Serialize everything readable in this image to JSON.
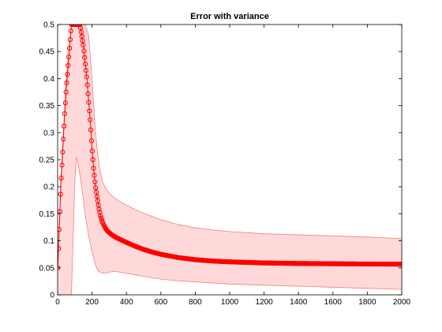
{
  "chart_data": {
    "type": "line",
    "title": "Error with variance",
    "xlabel": "",
    "ylabel": "",
    "xlim": [
      0,
      2000
    ],
    "ylim": [
      0,
      0.5
    ],
    "x_ticks": [
      0,
      200,
      400,
      600,
      800,
      1000,
      1200,
      1400,
      1600,
      1800,
      2000
    ],
    "y_ticks": [
      0,
      0.05,
      0.1,
      0.15,
      0.2,
      0.25,
      0.3,
      0.35,
      0.4,
      0.45,
      0.5
    ],
    "grid": false,
    "legend": "none",
    "colors": {
      "series": "#ff0000",
      "band_fill": "#ffd9d9",
      "band_edge": "#f08080",
      "axes": "#000000",
      "background": "#ffffff"
    },
    "series": [
      {
        "values_kind": "mean",
        "marker": "circle",
        "x": [
          1,
          10,
          20,
          30,
          40,
          50,
          60,
          70,
          80,
          90,
          100,
          110,
          120,
          130,
          140,
          150,
          160,
          170,
          180,
          190,
          200,
          210,
          220,
          230,
          240,
          250,
          260,
          270,
          280,
          290,
          300,
          320,
          340,
          360,
          380,
          400,
          450,
          500,
          550,
          600,
          700,
          800,
          900,
          1000,
          1100,
          1200,
          1300,
          1400,
          1500,
          1600,
          1700,
          1800,
          1900,
          2000
        ],
        "values": [
          0.05,
          0.13,
          0.21,
          0.27,
          0.33,
          0.38,
          0.42,
          0.46,
          0.5,
          0.5,
          0.5,
          0.5,
          0.5,
          0.5,
          0.48,
          0.46,
          0.43,
          0.4,
          0.36,
          0.32,
          0.27,
          0.23,
          0.2,
          0.18,
          0.16,
          0.145,
          0.135,
          0.128,
          0.122,
          0.118,
          0.115,
          0.11,
          0.106,
          0.103,
          0.1,
          0.097,
          0.09,
          0.084,
          0.079,
          0.075,
          0.069,
          0.065,
          0.0625,
          0.061,
          0.06,
          0.059,
          0.0585,
          0.058,
          0.0578,
          0.0575,
          0.0572,
          0.057,
          0.0569,
          0.0568
        ]
      }
    ],
    "band": {
      "x": [
        1,
        20,
        50,
        80,
        100,
        110,
        120,
        140,
        160,
        180,
        200,
        220,
        240,
        260,
        280,
        300,
        320,
        340,
        360,
        380,
        400,
        450,
        500,
        600,
        700,
        800,
        900,
        1000,
        1200,
        1400,
        1600,
        1800,
        2000
      ],
      "upper": [
        0.06,
        0.22,
        0.4,
        0.5,
        0.5,
        0.5,
        0.5,
        0.5,
        0.5,
        0.48,
        0.4,
        0.3,
        0.24,
        0.21,
        0.196,
        0.188,
        0.182,
        0.177,
        0.173,
        0.169,
        0.166,
        0.158,
        0.151,
        0.139,
        0.13,
        0.124,
        0.12,
        0.117,
        0.113,
        0.111,
        0.109,
        0.107,
        0.104
      ],
      "lower": [
        0.0,
        0.0,
        0.0,
        0.0,
        0.21,
        0.255,
        0.24,
        0.2,
        0.15,
        0.11,
        0.08,
        0.055,
        0.043,
        0.04,
        0.04,
        0.042,
        0.043,
        0.043,
        0.042,
        0.041,
        0.04,
        0.037,
        0.034,
        0.029,
        0.026,
        0.024,
        0.022,
        0.02,
        0.018,
        0.016,
        0.014,
        0.012,
        0.01
      ]
    }
  }
}
